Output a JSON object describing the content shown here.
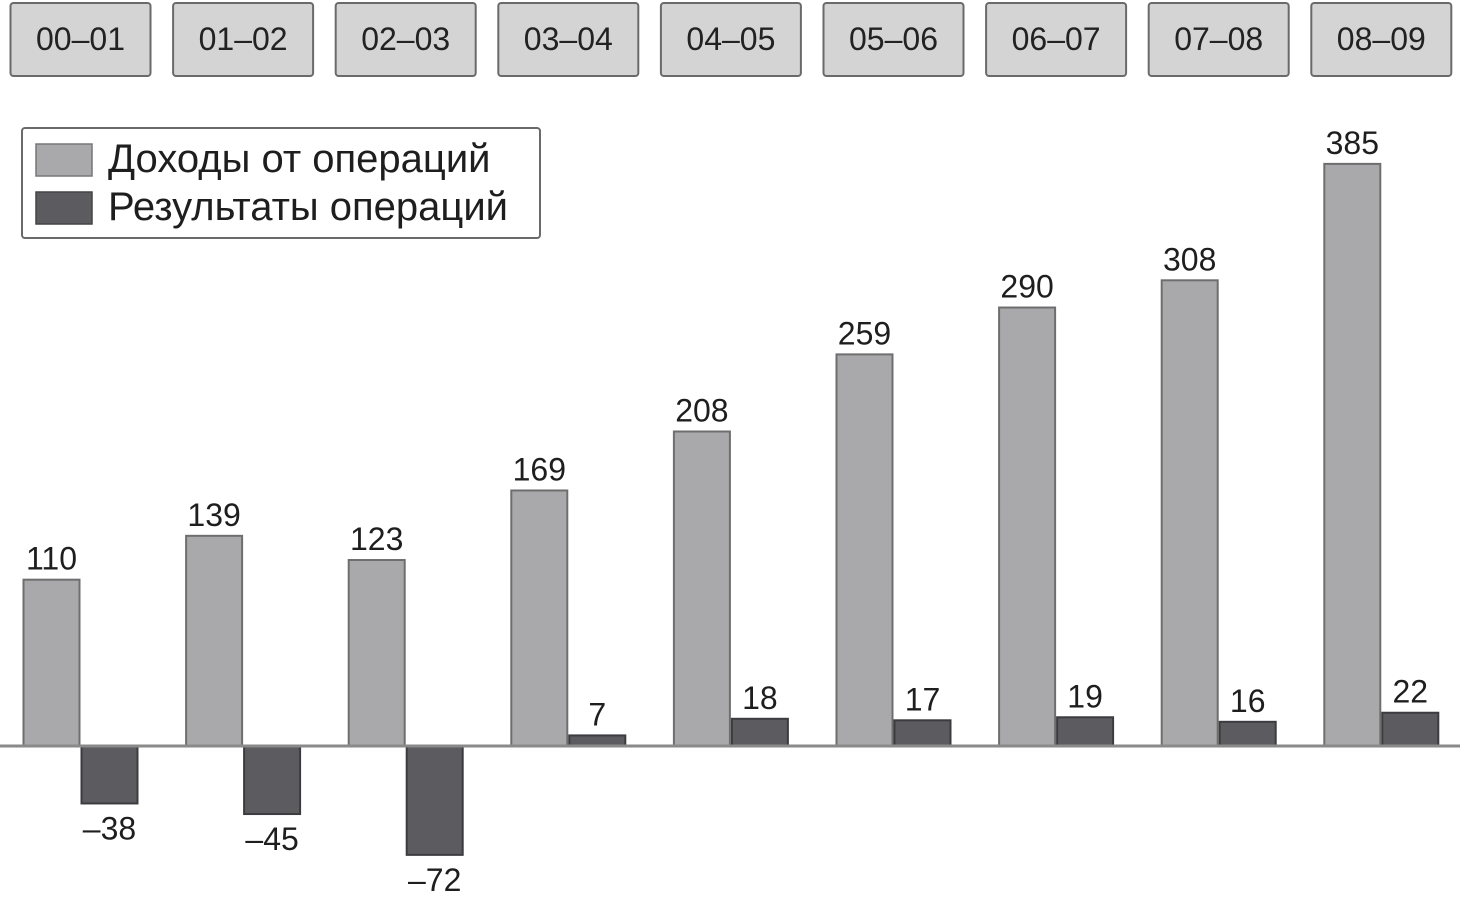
{
  "chart_data": {
    "type": "bar",
    "title": "",
    "xlabel": "",
    "ylabel": "",
    "categories": [
      "00–01",
      "01–02",
      "02–03",
      "03–04",
      "04–05",
      "05–06",
      "06–07",
      "07–08",
      "08–09"
    ],
    "series": [
      {
        "name": "Доходы от операций",
        "color": "#a9a9ab",
        "values": [
          110,
          139,
          123,
          169,
          208,
          259,
          290,
          308,
          385
        ],
        "labels": [
          "110",
          "139",
          "123",
          "169",
          "208",
          "259",
          "290",
          "308",
          "385"
        ]
      },
      {
        "name": "Результаты операций",
        "color": "#5c5c60",
        "values": [
          -38,
          -45,
          -72,
          7,
          18,
          17,
          19,
          16,
          22
        ],
        "labels": [
          "–38",
          "–45",
          "–72",
          "7",
          "18",
          "17",
          "19",
          "16",
          "22"
        ]
      }
    ],
    "ylim": [
      -75,
      390
    ],
    "grid": false,
    "legend_position": "top-left",
    "categories_position": "top"
  }
}
